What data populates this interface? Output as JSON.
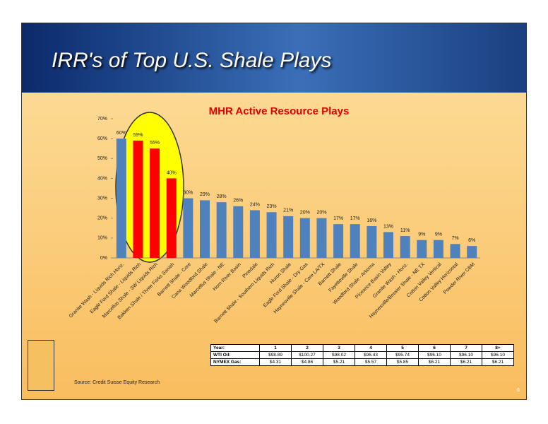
{
  "header": {
    "title": "IRR's of Top U.S. Shale Plays"
  },
  "chart_data": {
    "type": "bar",
    "title": "MHR Active Resource Plays",
    "categories": [
      "Granite Wash - Liquids Rich Horiz.",
      "Eagle Ford Shale - Liquids Rich",
      "Marcellus Shale - SW Liquids Rich",
      "Bakken Shale / Three Forks Sanish",
      "Barnett Shale - Core",
      "Cana Woodford Shale",
      "Marcellus Shale - NE",
      "Horn River Basin",
      "Pinedale",
      "Barnett Shale - Southern Liquids Rich",
      "Huron Shale",
      "Eagle Ford Shale - Dry Gas",
      "Haynesville Shale - Core LA/TX",
      "Barnett Shale",
      "Fayetteville Shale",
      "Woodford Shale - Arkoma",
      "Piceance Basin Valley",
      "Granite Wash - Horiz.",
      "Haynesville/Bossier Shale - NE TX",
      "Cotton Valley Vertical",
      "Cotton Valley Horizontal",
      "Powder River CBM"
    ],
    "values": [
      60,
      59,
      55,
      40,
      30,
      29,
      28,
      26,
      24,
      23,
      21,
      20,
      20,
      17,
      17,
      16,
      13,
      11,
      9,
      9,
      7,
      6
    ],
    "value_labels": [
      "60%",
      "59%",
      "55%",
      "40%",
      "30%",
      "29%",
      "28%",
      "26%",
      "24%",
      "23%",
      "21%",
      "20%",
      "20%",
      "17%",
      "17%",
      "16%",
      "13%",
      "11%",
      "9%",
      "9%",
      "7%",
      "6%"
    ],
    "colors": [
      "#4f81bd",
      "#ff0000",
      "#ff0000",
      "#ff0000",
      "#4f81bd",
      "#4f81bd",
      "#4f81bd",
      "#4f81bd",
      "#4f81bd",
      "#4f81bd",
      "#4f81bd",
      "#4f81bd",
      "#4f81bd",
      "#4f81bd",
      "#4f81bd",
      "#4f81bd",
      "#4f81bd",
      "#4f81bd",
      "#4f81bd",
      "#4f81bd",
      "#4f81bd",
      "#4f81bd"
    ],
    "ylim": [
      0,
      70
    ],
    "yticks": [
      {
        "value": 0,
        "label": "0%"
      },
      {
        "value": 10,
        "label": "10%"
      },
      {
        "value": 20,
        "label": "20%"
      },
      {
        "value": 30,
        "label": "30%"
      },
      {
        "value": 40,
        "label": "40%"
      },
      {
        "value": 50,
        "label": "50%"
      },
      {
        "value": 60,
        "label": "60%"
      },
      {
        "value": 70,
        "label": "70%"
      }
    ]
  },
  "table": {
    "rows": [
      [
        "Year:",
        "1",
        "2",
        "3",
        "4",
        "5",
        "6",
        "7",
        "8+"
      ],
      [
        "WTI Oil:",
        "$98.89",
        "$100.27",
        "$98.02",
        "$96.43",
        "$95.74",
        "$96.10",
        "$96.10",
        "$96.10"
      ],
      [
        "NYMEX Gas:",
        "$4.31",
        "$4.86",
        "$5.21",
        "$5.57",
        "$5.85",
        "$6.21",
        "$6.21",
        "$6.21"
      ]
    ]
  },
  "footer": {
    "source": "Source: Credit Suisse Equity Research",
    "page": "6"
  }
}
